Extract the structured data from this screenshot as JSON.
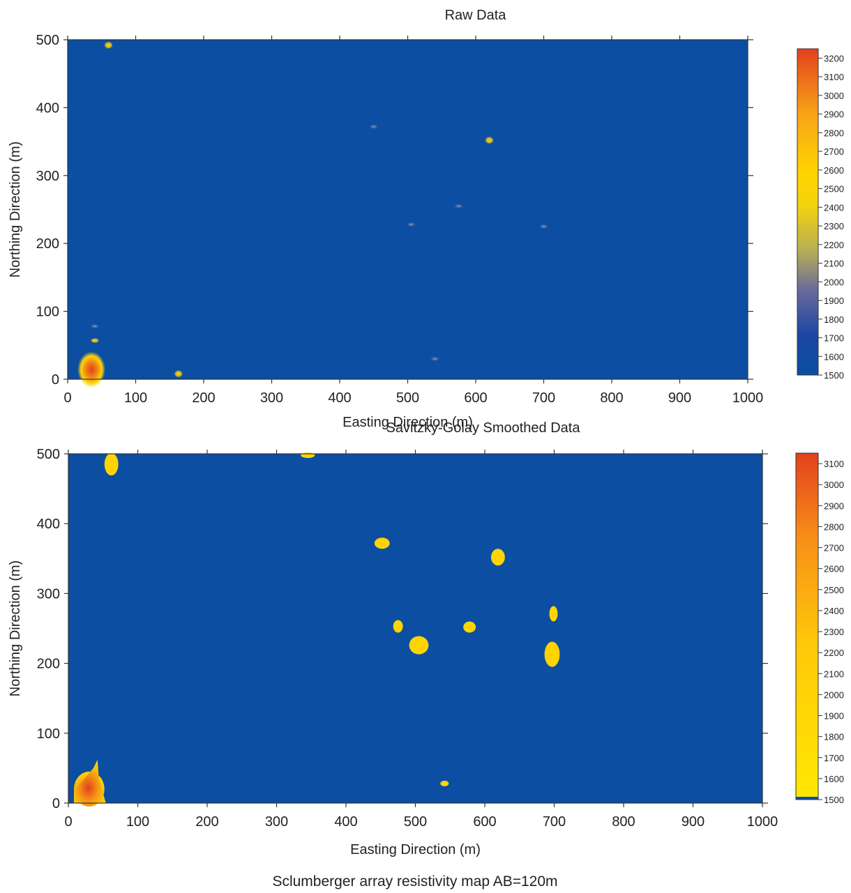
{
  "figure_caption": "Sclumberger array resistivity map AB=120m",
  "chart_data": [
    {
      "type": "heatmap",
      "title": "Raw Data",
      "xlabel": "Easting Direction (m)",
      "ylabel": "Northing Direction (m)",
      "xlim": [
        0,
        1000
      ],
      "ylim": [
        0,
        500
      ],
      "x_ticks": [
        "0",
        "100",
        "200",
        "300",
        "400",
        "500",
        "600",
        "700",
        "800",
        "900",
        "1000"
      ],
      "y_ticks": [
        "0",
        "100",
        "200",
        "300",
        "400",
        "500"
      ],
      "background_value": 1550,
      "colors": {
        "background": "#0b4ea2",
        "low": "#1a3f9e",
        "mid": "#c8b430",
        "high_yellow": "#ffd400",
        "high_red": "#e2401c"
      },
      "colorbar": {
        "min": 1500,
        "max": 3250,
        "ticks": [
          "1500",
          "1600",
          "1700",
          "1800",
          "1900",
          "2000",
          "2100",
          "2200",
          "2300",
          "2400",
          "2500",
          "2600",
          "2700",
          "2800",
          "2900",
          "3000",
          "3100",
          "3200"
        ]
      },
      "anomalies": [
        {
          "x": 35,
          "y": 8,
          "value": 3200
        },
        {
          "x": 60,
          "y": 492,
          "value": 2450
        },
        {
          "x": 620,
          "y": 352,
          "value": 2150
        },
        {
          "x": 450,
          "y": 372,
          "value": 1800
        },
        {
          "x": 575,
          "y": 255,
          "value": 1750
        },
        {
          "x": 505,
          "y": 228,
          "value": 1700
        },
        {
          "x": 700,
          "y": 225,
          "value": 1700
        },
        {
          "x": 540,
          "y": 30,
          "value": 1800
        },
        {
          "x": 40,
          "y": 57,
          "value": 2100
        },
        {
          "x": 163,
          "y": 8,
          "value": 2300
        },
        {
          "x": 40,
          "y": 78,
          "value": 1750
        }
      ]
    },
    {
      "type": "heatmap",
      "title": "Savitzky-Golay Smoothed Data",
      "xlabel": "Easting Direction (m)",
      "ylabel": "Northing Direction (m)",
      "xlim": [
        0,
        1000
      ],
      "ylim": [
        0,
        500
      ],
      "x_ticks": [
        "0",
        "100",
        "200",
        "300",
        "400",
        "500",
        "600",
        "700",
        "800",
        "900",
        "1000"
      ],
      "y_ticks": [
        "0",
        "100",
        "200",
        "300",
        "400",
        "500"
      ],
      "background_value": 1500,
      "colors": {
        "background": "#0b4ea2",
        "blob_yellow": "#ffd400",
        "blob_red": "#e2401c"
      },
      "colorbar": {
        "min": 1500,
        "max": 3150,
        "ticks": [
          "1500",
          "1600",
          "1700",
          "1800",
          "1900",
          "2000",
          "2100",
          "2200",
          "2300",
          "2400",
          "2500",
          "2600",
          "2700",
          "2800",
          "2900",
          "3000",
          "3100"
        ]
      },
      "anomalies": [
        {
          "x": 30,
          "y": 20,
          "rx": 22,
          "ry": 25,
          "value": 3000
        },
        {
          "x": 62,
          "y": 485,
          "rx": 10,
          "ry": 16,
          "value": 1800
        },
        {
          "x": 345,
          "y": 498,
          "rx": 10,
          "ry": 4,
          "value": 1700
        },
        {
          "x": 452,
          "y": 372,
          "rx": 11,
          "ry": 8,
          "value": 1700
        },
        {
          "x": 619,
          "y": 352,
          "rx": 10,
          "ry": 12,
          "value": 1700
        },
        {
          "x": 475,
          "y": 253,
          "rx": 7,
          "ry": 9,
          "value": 1700
        },
        {
          "x": 505,
          "y": 226,
          "rx": 14,
          "ry": 13,
          "value": 1700
        },
        {
          "x": 578,
          "y": 252,
          "rx": 9,
          "ry": 8,
          "value": 1700
        },
        {
          "x": 699,
          "y": 271,
          "rx": 6,
          "ry": 11,
          "value": 1700
        },
        {
          "x": 697,
          "y": 213,
          "rx": 11,
          "ry": 18,
          "value": 1700
        },
        {
          "x": 542,
          "y": 28,
          "rx": 6,
          "ry": 4,
          "value": 1700
        }
      ]
    }
  ]
}
